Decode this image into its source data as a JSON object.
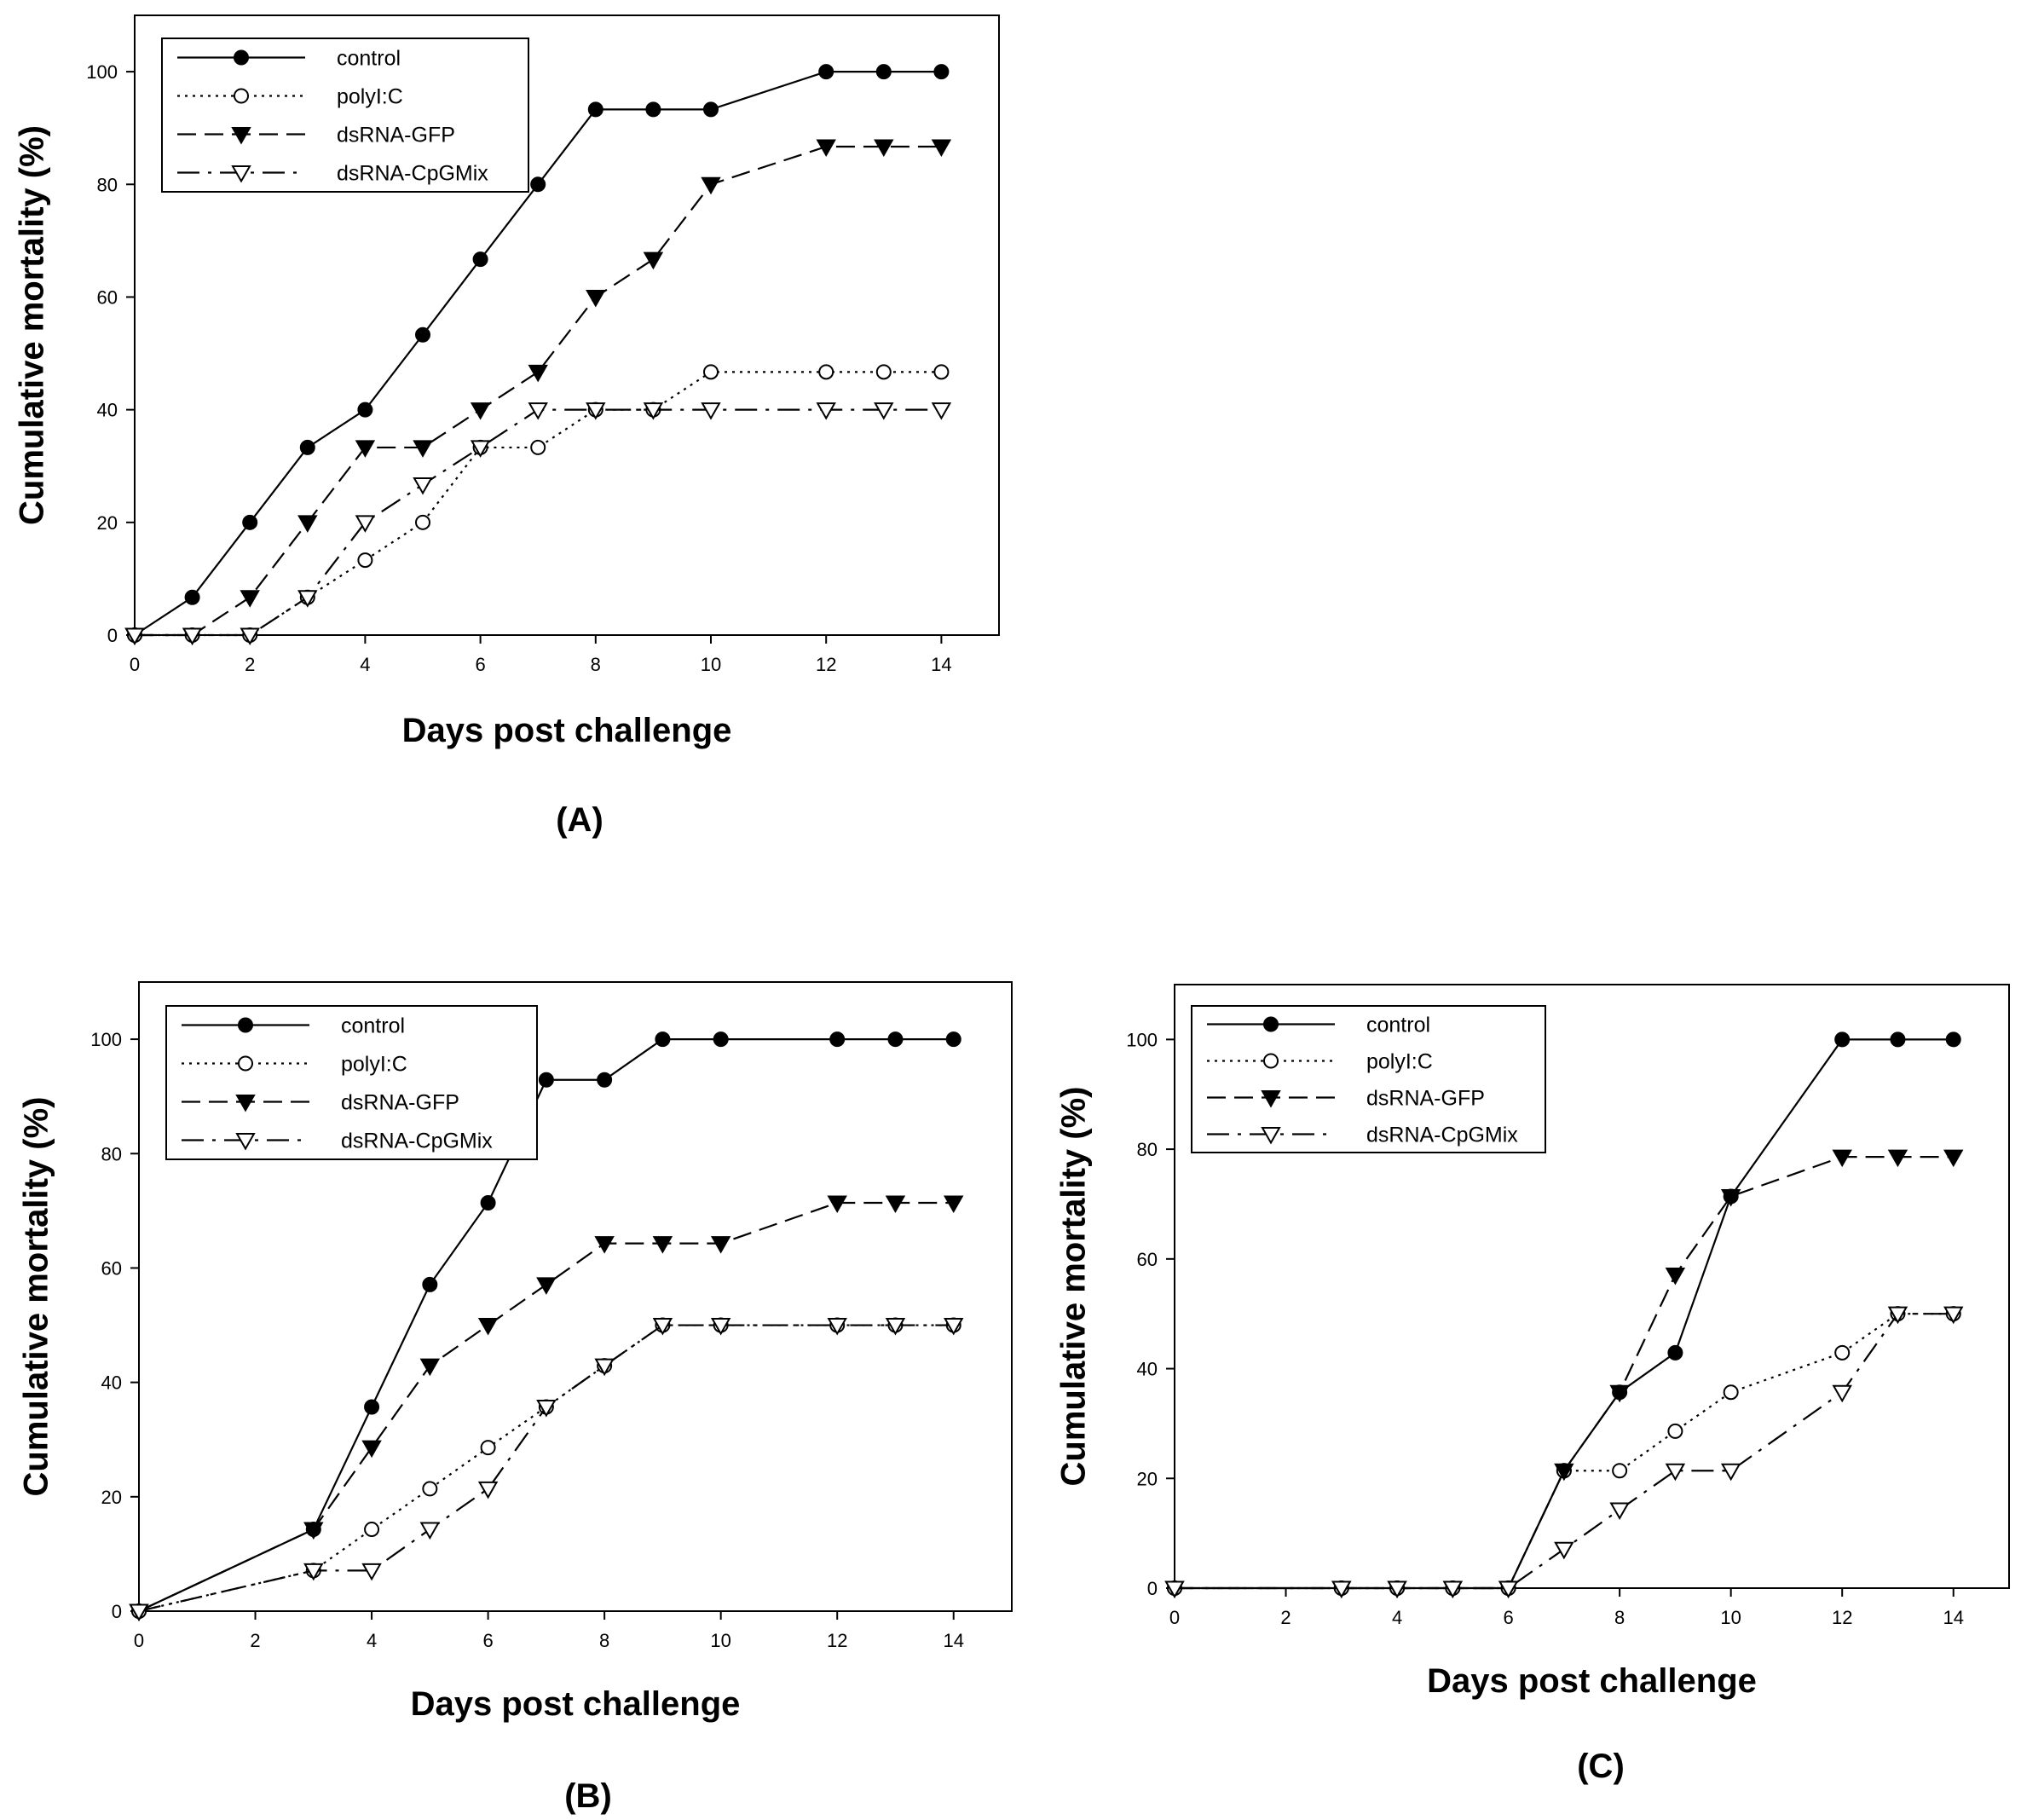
{
  "figure": {
    "panels": [
      {
        "id": "A",
        "label": "(A)",
        "chart": {
          "type": "line",
          "title": "",
          "xlabel": "Days post challenge",
          "ylabel": "Cumulative mortality (%)",
          "xlim": [
            0,
            15
          ],
          "ylim": [
            0,
            110
          ],
          "xticks": [
            0,
            2,
            4,
            6,
            8,
            10,
            12,
            14
          ],
          "yticks": [
            0,
            20,
            40,
            60,
            80,
            100
          ],
          "legend": "top-left",
          "grid": false,
          "series": [
            {
              "name": "control",
              "style": "solid",
              "marker": "filled-circle",
              "x": [
                0,
                1,
                2,
                3,
                4,
                5,
                6,
                7,
                8,
                9,
                10,
                12,
                13,
                14
              ],
              "y": [
                0,
                6.7,
                20,
                33.3,
                40,
                53.3,
                66.7,
                80,
                93.3,
                93.3,
                93.3,
                100,
                100,
                100
              ]
            },
            {
              "name": "polyI:C",
              "style": "dotted",
              "marker": "open-circle",
              "x": [
                0,
                1,
                2,
                3,
                4,
                5,
                6,
                7,
                8,
                9,
                10,
                12,
                13,
                14
              ],
              "y": [
                0,
                0,
                0,
                6.7,
                13.3,
                20,
                33.3,
                33.3,
                40,
                40,
                46.7,
                46.7,
                46.7,
                46.7
              ]
            },
            {
              "name": "dsRNA-GFP",
              "style": "dashed",
              "marker": "filled-triangle-down",
              "x": [
                0,
                1,
                2,
                3,
                4,
                5,
                6,
                7,
                8,
                9,
                10,
                12,
                13,
                14
              ],
              "y": [
                0,
                0,
                6.7,
                20,
                33.3,
                33.3,
                40,
                46.7,
                60,
                66.7,
                80,
                86.7,
                86.7,
                86.7
              ]
            },
            {
              "name": "dsRNA-CpGMix",
              "style": "dashdot",
              "marker": "open-triangle-down",
              "x": [
                0,
                1,
                2,
                3,
                4,
                5,
                6,
                7,
                8,
                9,
                10,
                12,
                13,
                14
              ],
              "y": [
                0,
                0,
                0,
                6.7,
                20,
                26.7,
                33.3,
                40,
                40,
                40,
                40,
                40,
                40,
                40
              ]
            }
          ]
        }
      },
      {
        "id": "B",
        "label": "(B)",
        "chart": {
          "type": "line",
          "title": "",
          "xlabel": "Days post challenge",
          "ylabel": "Cumulative mortality (%)",
          "xlim": [
            0,
            15
          ],
          "ylim": [
            0,
            110
          ],
          "xticks": [
            0,
            2,
            4,
            6,
            8,
            10,
            12,
            14
          ],
          "yticks": [
            0,
            20,
            40,
            60,
            80,
            100
          ],
          "legend": "top-left",
          "grid": false,
          "series": [
            {
              "name": "control",
              "style": "solid",
              "marker": "filled-circle",
              "x": [
                0,
                3,
                4,
                5,
                6,
                7,
                8,
                9,
                10,
                12,
                13,
                14
              ],
              "y": [
                0,
                14.3,
                35.7,
                57.1,
                71.4,
                92.9,
                92.9,
                100,
                100,
                100,
                100,
                100
              ]
            },
            {
              "name": "polyI:C",
              "style": "dotted",
              "marker": "open-circle",
              "x": [
                0,
                3,
                4,
                5,
                6,
                7,
                8,
                9,
                10,
                12,
                13,
                14
              ],
              "y": [
                0,
                7.1,
                14.3,
                21.4,
                28.6,
                35.7,
                42.9,
                50,
                50,
                50,
                50,
                50
              ]
            },
            {
              "name": "dsRNA-GFP",
              "style": "dashed",
              "marker": "filled-triangle-down",
              "x": [
                0,
                3,
                4,
                5,
                6,
                7,
                8,
                9,
                10,
                12,
                13,
                14
              ],
              "y": [
                0,
                14.3,
                28.6,
                42.9,
                50,
                57.1,
                64.3,
                64.3,
                64.3,
                71.4,
                71.4,
                71.4
              ]
            },
            {
              "name": "dsRNA-CpGMix",
              "style": "dashdot",
              "marker": "open-triangle-down",
              "x": [
                0,
                3,
                4,
                5,
                6,
                7,
                8,
                9,
                10,
                12,
                13,
                14
              ],
              "y": [
                0,
                7.1,
                7.1,
                14.3,
                21.4,
                35.7,
                42.9,
                50,
                50,
                50,
                50,
                50
              ]
            }
          ]
        }
      },
      {
        "id": "C",
        "label": "(C)",
        "chart": {
          "type": "line",
          "title": "",
          "xlabel": "Days post challenge",
          "ylabel": "Cumulative mortality (%)",
          "xlim": [
            0,
            15
          ],
          "ylim": [
            0,
            110
          ],
          "xticks": [
            0,
            2,
            4,
            6,
            8,
            10,
            12,
            14
          ],
          "yticks": [
            0,
            20,
            40,
            60,
            80,
            100
          ],
          "legend": "top-left",
          "grid": false,
          "series": [
            {
              "name": "control",
              "style": "solid",
              "marker": "filled-circle",
              "x": [
                0,
                3,
                4,
                5,
                6,
                7,
                8,
                9,
                10,
                12,
                13,
                14
              ],
              "y": [
                0,
                0,
                0,
                0,
                0,
                21.4,
                35.7,
                42.9,
                71.4,
                100,
                100,
                100
              ]
            },
            {
              "name": "polyI:C",
              "style": "dotted",
              "marker": "open-circle",
              "x": [
                0,
                3,
                4,
                5,
                6,
                7,
                8,
                9,
                10,
                12,
                13,
                14
              ],
              "y": [
                0,
                0,
                0,
                0,
                0,
                21.4,
                21.4,
                28.6,
                35.7,
                42.9,
                50,
                50
              ]
            },
            {
              "name": "dsRNA-GFP",
              "style": "dashed",
              "marker": "filled-triangle-down",
              "x": [
                0,
                3,
                4,
                5,
                6,
                7,
                8,
                9,
                10,
                12,
                13,
                14
              ],
              "y": [
                0,
                0,
                0,
                0,
                0,
                21.4,
                35.7,
                57.1,
                71.4,
                78.6,
                78.6,
                78.6
              ]
            },
            {
              "name": "dsRNA-CpGMix",
              "style": "dashdot",
              "marker": "open-triangle-down",
              "x": [
                0,
                3,
                4,
                5,
                6,
                7,
                8,
                9,
                10,
                12,
                13,
                14
              ],
              "y": [
                0,
                0,
                0,
                0,
                0,
                7.1,
                14.3,
                21.4,
                21.4,
                35.7,
                50,
                50
              ]
            }
          ]
        }
      }
    ]
  },
  "chart_data": [
    {
      "panel": "(A)",
      "type": "line",
      "title": "",
      "xlabel": "Days post challenge",
      "ylabel": "Cumulative mortality (%)",
      "xlim": [
        0,
        15
      ],
      "ylim": [
        0,
        110
      ],
      "legend": "top-left",
      "grid": false,
      "series": [
        {
          "name": "control",
          "x": [
            0,
            1,
            2,
            3,
            4,
            5,
            6,
            7,
            8,
            9,
            10,
            12,
            13,
            14
          ],
          "values": [
            0,
            6.7,
            20,
            33.3,
            40,
            53.3,
            66.7,
            80,
            93.3,
            93.3,
            93.3,
            100,
            100,
            100
          ]
        },
        {
          "name": "polyI:C",
          "x": [
            0,
            1,
            2,
            3,
            4,
            5,
            6,
            7,
            8,
            9,
            10,
            12,
            13,
            14
          ],
          "values": [
            0,
            0,
            0,
            6.7,
            13.3,
            20,
            33.3,
            33.3,
            40,
            40,
            46.7,
            46.7,
            46.7,
            46.7
          ]
        },
        {
          "name": "dsRNA-GFP",
          "x": [
            0,
            1,
            2,
            3,
            4,
            5,
            6,
            7,
            8,
            9,
            10,
            12,
            13,
            14
          ],
          "values": [
            0,
            0,
            6.7,
            20,
            33.3,
            33.3,
            40,
            46.7,
            60,
            66.7,
            80,
            86.7,
            86.7,
            86.7
          ]
        },
        {
          "name": "dsRNA-CpGMix",
          "x": [
            0,
            1,
            2,
            3,
            4,
            5,
            6,
            7,
            8,
            9,
            10,
            12,
            13,
            14
          ],
          "values": [
            0,
            0,
            0,
            6.7,
            20,
            26.7,
            33.3,
            40,
            40,
            40,
            40,
            40,
            40,
            40
          ]
        }
      ]
    },
    {
      "panel": "(B)",
      "type": "line",
      "title": "",
      "xlabel": "Days post challenge",
      "ylabel": "Cumulative mortality (%)",
      "xlim": [
        0,
        15
      ],
      "ylim": [
        0,
        110
      ],
      "legend": "top-left",
      "grid": false,
      "series": [
        {
          "name": "control",
          "x": [
            0,
            3,
            4,
            5,
            6,
            7,
            8,
            9,
            10,
            12,
            13,
            14
          ],
          "values": [
            0,
            14.3,
            35.7,
            57.1,
            71.4,
            92.9,
            92.9,
            100,
            100,
            100,
            100,
            100
          ]
        },
        {
          "name": "polyI:C",
          "x": [
            0,
            3,
            4,
            5,
            6,
            7,
            8,
            9,
            10,
            12,
            13,
            14
          ],
          "values": [
            0,
            7.1,
            14.3,
            21.4,
            28.6,
            35.7,
            42.9,
            50,
            50,
            50,
            50,
            50
          ]
        },
        {
          "name": "dsRNA-GFP",
          "x": [
            0,
            3,
            4,
            5,
            6,
            7,
            8,
            9,
            10,
            12,
            13,
            14
          ],
          "values": [
            0,
            14.3,
            28.6,
            42.9,
            50,
            57.1,
            64.3,
            64.3,
            64.3,
            71.4,
            71.4,
            71.4
          ]
        },
        {
          "name": "dsRNA-CpGMix",
          "x": [
            0,
            3,
            4,
            5,
            6,
            7,
            8,
            9,
            10,
            12,
            13,
            14
          ],
          "values": [
            0,
            7.1,
            7.1,
            14.3,
            21.4,
            35.7,
            42.9,
            50,
            50,
            50,
            50,
            50
          ]
        }
      ]
    },
    {
      "panel": "(C)",
      "type": "line",
      "title": "",
      "xlabel": "Days post challenge",
      "ylabel": "Cumulative mortality (%)",
      "xlim": [
        0,
        15
      ],
      "ylim": [
        0,
        110
      ],
      "legend": "top-left",
      "grid": false,
      "series": [
        {
          "name": "control",
          "x": [
            0,
            3,
            4,
            5,
            6,
            7,
            8,
            9,
            10,
            12,
            13,
            14
          ],
          "values": [
            0,
            0,
            0,
            0,
            0,
            21.4,
            35.7,
            42.9,
            71.4,
            100,
            100,
            100
          ]
        },
        {
          "name": "polyI:C",
          "x": [
            0,
            3,
            4,
            5,
            6,
            7,
            8,
            9,
            10,
            12,
            13,
            14
          ],
          "values": [
            0,
            0,
            0,
            0,
            0,
            21.4,
            21.4,
            28.6,
            35.7,
            42.9,
            50,
            50
          ]
        },
        {
          "name": "dsRNA-GFP",
          "x": [
            0,
            3,
            4,
            5,
            6,
            7,
            8,
            9,
            10,
            12,
            13,
            14
          ],
          "values": [
            0,
            0,
            0,
            0,
            0,
            21.4,
            35.7,
            57.1,
            71.4,
            78.6,
            78.6,
            78.6
          ]
        },
        {
          "name": "dsRNA-CpGMix",
          "x": [
            0,
            3,
            4,
            5,
            6,
            7,
            8,
            9,
            10,
            12,
            13,
            14
          ],
          "values": [
            0,
            0,
            0,
            0,
            0,
            7.1,
            14.3,
            21.4,
            21.4,
            35.7,
            50,
            50
          ]
        }
      ]
    }
  ]
}
